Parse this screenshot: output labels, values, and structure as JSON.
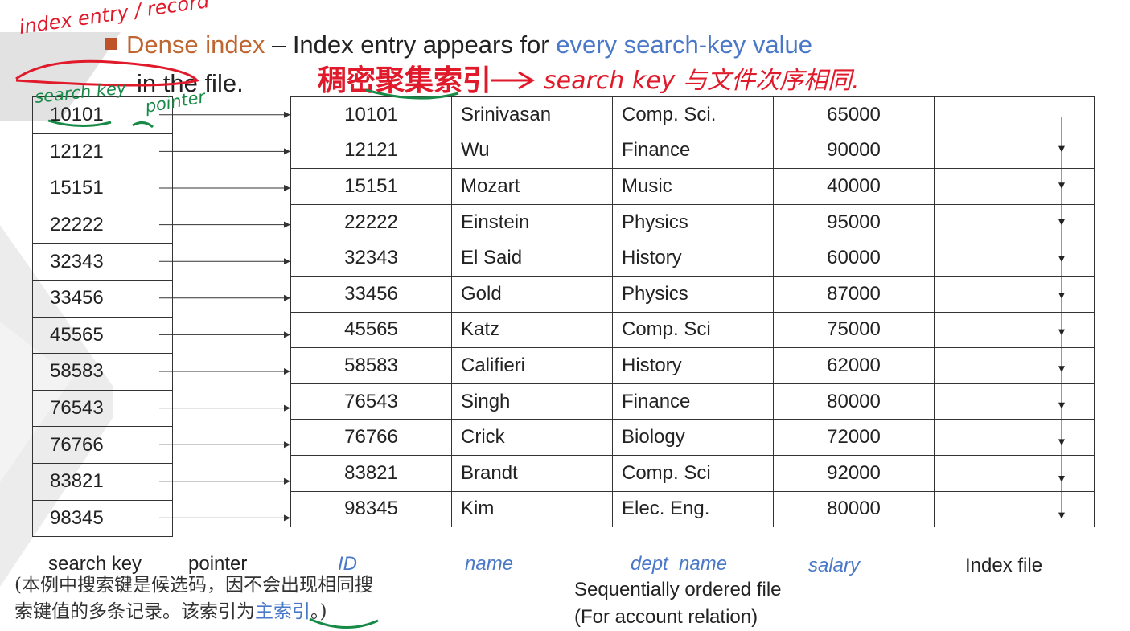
{
  "slide": {
    "heading_term": "Dense index",
    "heading_rest": "– Index entry appears for",
    "heading_highlight": "every search-key value",
    "heading_line2": "in the file."
  },
  "index_file": {
    "rows": [
      {
        "key": "10101"
      },
      {
        "key": "12121"
      },
      {
        "key": "15151"
      },
      {
        "key": "22222"
      },
      {
        "key": "32343"
      },
      {
        "key": "33456"
      },
      {
        "key": "45565"
      },
      {
        "key": "58583"
      },
      {
        "key": "76543"
      },
      {
        "key": "76766"
      },
      {
        "key": "83821"
      },
      {
        "key": "98345"
      }
    ]
  },
  "records": [
    {
      "id": "10101",
      "name": "Srinivasan",
      "dept": "Comp. Sci.",
      "salary": "65000"
    },
    {
      "id": "12121",
      "name": "Wu",
      "dept": "Finance",
      "salary": "90000"
    },
    {
      "id": "15151",
      "name": "Mozart",
      "dept": "Music",
      "salary": "40000"
    },
    {
      "id": "22222",
      "name": "Einstein",
      "dept": "Physics",
      "salary": "95000"
    },
    {
      "id": "32343",
      "name": "El Said",
      "dept": "History",
      "salary": "60000"
    },
    {
      "id": "33456",
      "name": "Gold",
      "dept": "Physics",
      "salary": "87000"
    },
    {
      "id": "45565",
      "name": "Katz",
      "dept": "Comp. Sci",
      "salary": "75000"
    },
    {
      "id": "58583",
      "name": "Califieri",
      "dept": "History",
      "salary": "62000"
    },
    {
      "id": "76543",
      "name": "Singh",
      "dept": "Finance",
      "salary": "80000"
    },
    {
      "id": "76766",
      "name": "Crick",
      "dept": "Biology",
      "salary": "72000"
    },
    {
      "id": "83821",
      "name": "Brandt",
      "dept": "Comp. Sci",
      "salary": "92000"
    },
    {
      "id": "98345",
      "name": "Kim",
      "dept": "Elec. Eng.",
      "salary": "80000"
    }
  ],
  "labels": {
    "search_key": "search key",
    "pointer": "pointer",
    "id": "ID",
    "name": "name",
    "dept_name": "dept_name",
    "salary": "salary",
    "index_file": "Index file",
    "sequential_line1": "Sequentially ordered file",
    "sequential_line2": "(For account relation)"
  },
  "note": {
    "line1": "(本例中搜索键是候选码，因不会出现相同搜",
    "line2_prefix": "索键值的多条记录。该索引为",
    "line2_em": "主索引",
    "line2_suffix": "。)"
  },
  "annotations": {
    "top_left": "index entry / record",
    "search_key": "search key",
    "pointer": "pointer",
    "chinese": "稠密聚集索引",
    "arrow_text": "search key 与文件次序相同."
  },
  "colors": {
    "accent_orange": "#c0652f",
    "accent_blue": "#4a78c9",
    "ink_red": "#e01a2a",
    "ink_green": "#188a48"
  }
}
